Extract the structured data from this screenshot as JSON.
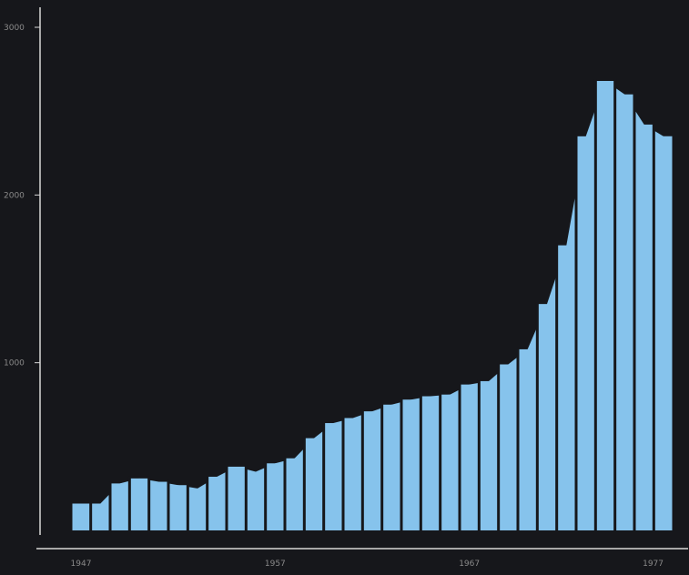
{
  "chart_data": {
    "type": "bar",
    "title": "",
    "xlabel": "",
    "ylabel": "",
    "ylim": [
      0,
      3000
    ],
    "y_ticks": [
      1000,
      2000,
      3000
    ],
    "y_tick_labels": [
      "1000",
      "2000",
      "3000"
    ],
    "x_tick_labels": [
      "1947",
      "1957",
      "1967",
      "1977"
    ],
    "grid": false,
    "colors": {
      "background": "#16171b",
      "bar": "#86c3ec",
      "axis": "#d8d8d8",
      "label": "#8a8a8a"
    },
    "categories": [
      "1947",
      "1948",
      "1949",
      "1950",
      "1951",
      "1952",
      "1953",
      "1954",
      "1955",
      "1956",
      "1957",
      "1958",
      "1959",
      "1960",
      "1961",
      "1962",
      "1963",
      "1964",
      "1965",
      "1966",
      "1967",
      "1968",
      "1969",
      "1970",
      "1971",
      "1972",
      "1973",
      "1974",
      "1975",
      "1976",
      "1977"
    ],
    "values": [
      160,
      160,
      280,
      310,
      290,
      270,
      250,
      320,
      380,
      350,
      400,
      430,
      550,
      640,
      670,
      710,
      750,
      780,
      800,
      810,
      870,
      890,
      990,
      1080,
      1350,
      1700,
      2350,
      2680,
      2600,
      2420,
      2350
    ]
  }
}
